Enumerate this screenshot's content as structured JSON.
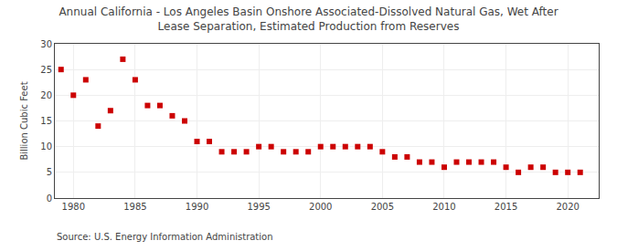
{
  "chart_data": {
    "type": "scatter",
    "title": "Annual California - Los Angeles Basin Onshore Associated-Dissolved Natural Gas, Wet After\nLease Separation, Estimated Production from Reserves",
    "ylabel": "Billion Cubic Feet",
    "annotations": [
      "Source: U.S. Energy Information Administration"
    ],
    "x": [
      1979,
      1980,
      1981,
      1982,
      1983,
      1984,
      1985,
      1986,
      1987,
      1988,
      1989,
      1990,
      1991,
      1992,
      1993,
      1994,
      1995,
      1996,
      1997,
      1998,
      1999,
      2000,
      2001,
      2002,
      2003,
      2004,
      2005,
      2006,
      2007,
      2008,
      2009,
      2010,
      2011,
      2012,
      2013,
      2014,
      2015,
      2016,
      2017,
      2018,
      2019,
      2020,
      2021
    ],
    "values": [
      25,
      20,
      23,
      14,
      17,
      27,
      23,
      18,
      18,
      16,
      15,
      11,
      11,
      9,
      9,
      9,
      10,
      10,
      9,
      9,
      9,
      10,
      10,
      10,
      10,
      10,
      9,
      8,
      8,
      7,
      7,
      6,
      7,
      7,
      7,
      7,
      6,
      5,
      6,
      6,
      5,
      5,
      5
    ],
    "color": "#cc0000",
    "marker": "square",
    "xlim": [
      1978.5,
      2022.5
    ],
    "xticks": [
      1980,
      1985,
      1990,
      1995,
      2000,
      2005,
      2010,
      2015,
      2020
    ],
    "ylim": [
      0,
      30
    ],
    "yticks": [
      0,
      5,
      10,
      15,
      20,
      25,
      30
    ],
    "grid": true
  }
}
